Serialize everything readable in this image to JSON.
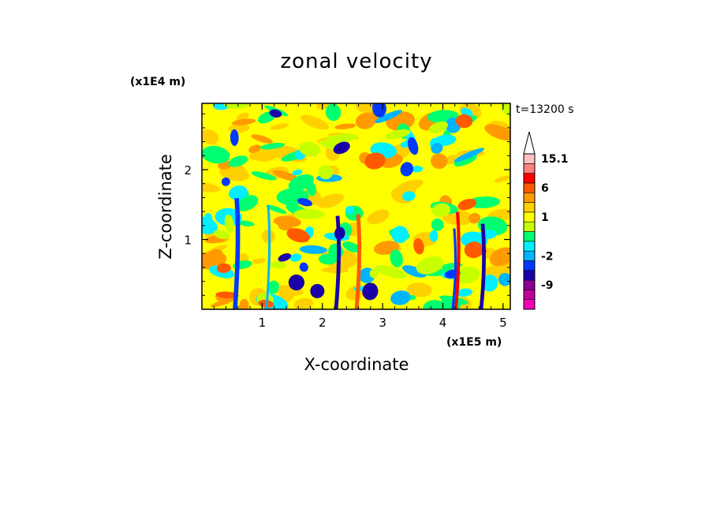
{
  "chart_data": {
    "type": "heatmap",
    "title": "zonal velocity",
    "xlabel": "X-coordinate",
    "ylabel": "Z-coordinate",
    "x_unit": "(x1E5 m)",
    "y_unit": "(x1E4 m)",
    "time_label": "t=13200 s",
    "xlim": [
      0,
      5.12
    ],
    "ylim": [
      0,
      2.95
    ],
    "x_ticks": [
      "1",
      "2",
      "3",
      "4",
      "5"
    ],
    "y_ticks": [
      "1",
      "2"
    ],
    "grid": false,
    "colorbar": {
      "placement": "right",
      "labels": [
        "15.1",
        "6",
        "1",
        "-2",
        "-9"
      ],
      "levels": [
        -15,
        -12,
        -9,
        -6,
        -4,
        -2,
        -1,
        0,
        0.5,
        1,
        2,
        4,
        6,
        9,
        12,
        15.1
      ],
      "colors": [
        "#f000b8",
        "#c0009e",
        "#8c0096",
        "#1a00a8",
        "#0038ff",
        "#00b4ff",
        "#00f0ff",
        "#00ff70",
        "#c8ff00",
        "#ffff00",
        "#ffd000",
        "#ff9a00",
        "#ff5a00",
        "#ff0000",
        "#ff8080",
        "#ffc0c0"
      ],
      "extend_max_arrow": true
    }
  }
}
